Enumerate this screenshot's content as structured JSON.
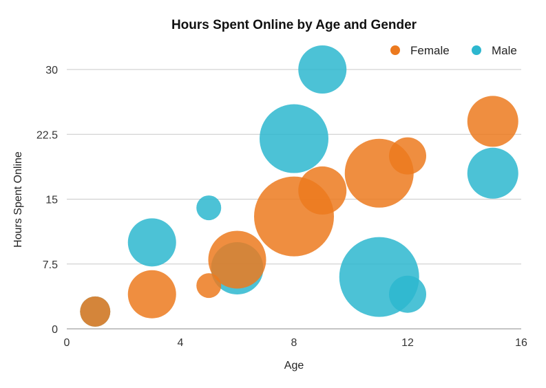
{
  "chart_data": {
    "type": "bubble",
    "title": "Hours Spent Online by Age and Gender",
    "xlabel": "Age",
    "ylabel": "Hours Spent Online",
    "xlim": [
      0,
      16
    ],
    "ylim": [
      0,
      30
    ],
    "xticks": [
      "0",
      "4",
      "8",
      "12",
      "16"
    ],
    "yticks": [
      "0",
      "7.5",
      "15",
      "22.5",
      "30"
    ],
    "grid": "horizontal",
    "legend_position": "top-right",
    "series": [
      {
        "name": "Female",
        "color": "#EC7A1F",
        "points": [
          {
            "x": 1,
            "y": 2,
            "size": 22
          },
          {
            "x": 3,
            "y": 4,
            "size": 35
          },
          {
            "x": 5,
            "y": 5,
            "size": 18
          },
          {
            "x": 6,
            "y": 8,
            "size": 42
          },
          {
            "x": 8,
            "y": 13,
            "size": 58
          },
          {
            "x": 9,
            "y": 16,
            "size": 35
          },
          {
            "x": 11,
            "y": 18,
            "size": 50
          },
          {
            "x": 12,
            "y": 20,
            "size": 27
          },
          {
            "x": 15,
            "y": 24,
            "size": 37
          }
        ]
      },
      {
        "name": "Male",
        "color": "#2DB7CF",
        "points": [
          {
            "x": 1,
            "y": 2,
            "size": 22
          },
          {
            "x": 3,
            "y": 10,
            "size": 35
          },
          {
            "x": 5,
            "y": 14,
            "size": 18
          },
          {
            "x": 6,
            "y": 7,
            "size": 38
          },
          {
            "x": 8,
            "y": 22,
            "size": 50
          },
          {
            "x": 9,
            "y": 30,
            "size": 35
          },
          {
            "x": 11,
            "y": 6,
            "size": 58
          },
          {
            "x": 12,
            "y": 4,
            "size": 27
          },
          {
            "x": 15,
            "y": 18,
            "size": 37
          }
        ]
      }
    ]
  }
}
